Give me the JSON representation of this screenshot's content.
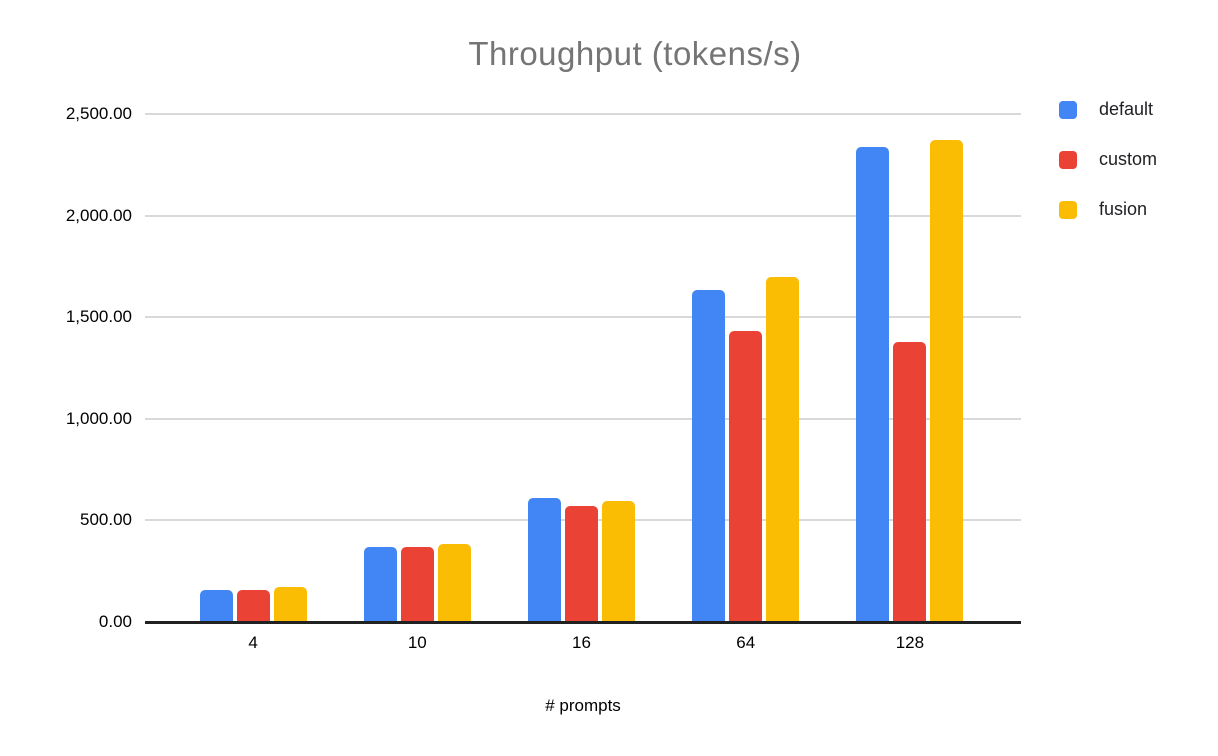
{
  "chart_data": {
    "type": "bar",
    "title": "Throughput (tokens/s)",
    "xlabel": "# prompts",
    "ylabel": "",
    "categories": [
      "4",
      "10",
      "16",
      "64",
      "128"
    ],
    "series": [
      {
        "name": "default",
        "color": "#4285F4",
        "values": [
          160,
          370,
          610,
          1635,
          2340
        ]
      },
      {
        "name": "custom",
        "color": "#EA4335",
        "values": [
          157,
          368,
          569,
          1430,
          1380
        ]
      },
      {
        "name": "fusion",
        "color": "#FBBC04",
        "values": [
          170,
          385,
          598,
          1700,
          2370
        ]
      }
    ],
    "ylim": [
      0,
      2500
    ],
    "y_tick_step": 500,
    "y_tick_labels": [
      "0.00",
      "500.00",
      "1,000.00",
      "1,500.00",
      "2,000.00",
      "2,500.00"
    ],
    "grid": true,
    "legend_position": "top-right"
  },
  "style": {
    "title_color": "#757575",
    "label_color": "#000000",
    "grid_color": "#d9d9d9",
    "axis_color": "#212121",
    "background": "#ffffff"
  }
}
